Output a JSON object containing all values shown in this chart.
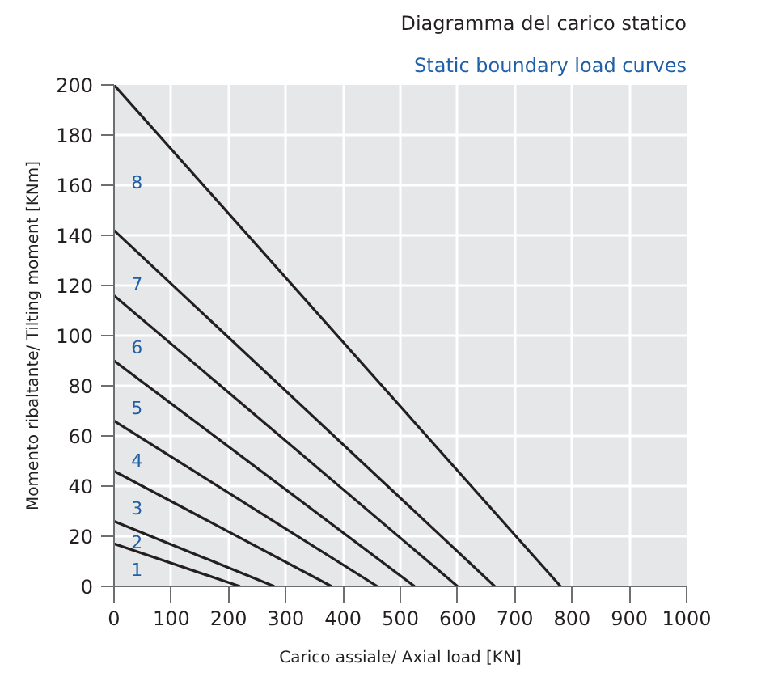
{
  "chart_data": {
    "type": "line",
    "title": "Diagramma del carico statico",
    "subtitle": "Static boundary load curves",
    "xlabel": "Carico assiale/ Axial load [KN]",
    "ylabel": "Momento ribaltante/ Tilting moment [KNm]",
    "series": [
      {
        "name": "1",
        "color": "#231f20",
        "x": [
          0,
          220
        ],
        "values": [
          17,
          0
        ]
      },
      {
        "name": "2",
        "color": "#231f20",
        "x": [
          0,
          280
        ],
        "values": [
          26,
          0
        ]
      },
      {
        "name": "3",
        "color": "#231f20",
        "x": [
          0,
          380
        ],
        "values": [
          46,
          0
        ]
      },
      {
        "name": "4",
        "color": "#231f20",
        "x": [
          0,
          460
        ],
        "values": [
          66,
          0
        ]
      },
      {
        "name": "5",
        "color": "#231f20",
        "x": [
          0,
          525
        ],
        "values": [
          90,
          0
        ]
      },
      {
        "name": "6",
        "color": "#231f20",
        "x": [
          0,
          600
        ],
        "values": [
          116,
          0
        ]
      },
      {
        "name": "7",
        "color": "#231f20",
        "x": [
          0,
          665
        ],
        "values": [
          142,
          0
        ]
      },
      {
        "name": "8",
        "color": "#231f20",
        "x": [
          0,
          780
        ],
        "values": [
          200,
          0
        ]
      }
    ],
    "xlim": [
      0,
      1000
    ],
    "ylim": [
      0,
      200
    ],
    "xticks": [
      0,
      100,
      200,
      300,
      400,
      500,
      600,
      700,
      800,
      900,
      1000
    ],
    "yticks": [
      0,
      20,
      40,
      60,
      80,
      100,
      120,
      140,
      160,
      180,
      200
    ],
    "grid": true,
    "legend": false,
    "marker": "none",
    "line_style": "solid"
  }
}
